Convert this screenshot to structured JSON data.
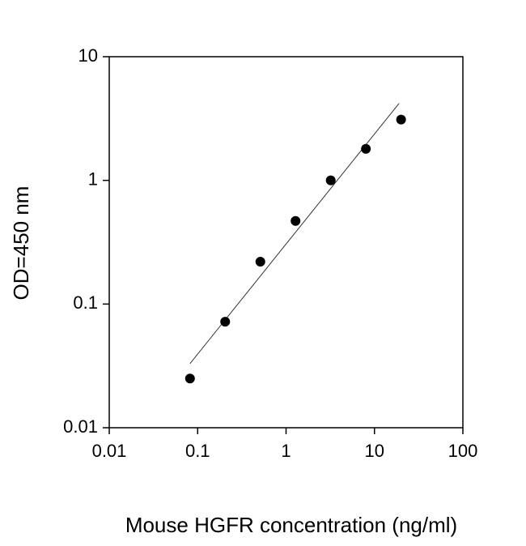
{
  "chart_data": {
    "type": "scatter",
    "xlabel": "Mouse HGFR concentration (ng/ml)",
    "ylabel": "OD=450 nm",
    "x": [
      0.08192,
      0.2048,
      0.512,
      1.28,
      3.2,
      8,
      20
    ],
    "series": [
      {
        "values": [
          0.025,
          0.072,
          0.22,
          0.47,
          1.0,
          1.8,
          3.1
        ],
        "color": "#000000"
      }
    ],
    "fit_line": {
      "x": [
        0.082,
        19
      ],
      "y": [
        0.033,
        4.2
      ],
      "color": "#333333"
    },
    "xscale": "log",
    "yscale": "log",
    "xlim": [
      0.01,
      100
    ],
    "ylim": [
      0.01,
      10
    ],
    "xticks": [
      0.01,
      0.1,
      1,
      10,
      100
    ],
    "yticks": [
      0.01,
      0.1,
      1,
      10
    ]
  }
}
